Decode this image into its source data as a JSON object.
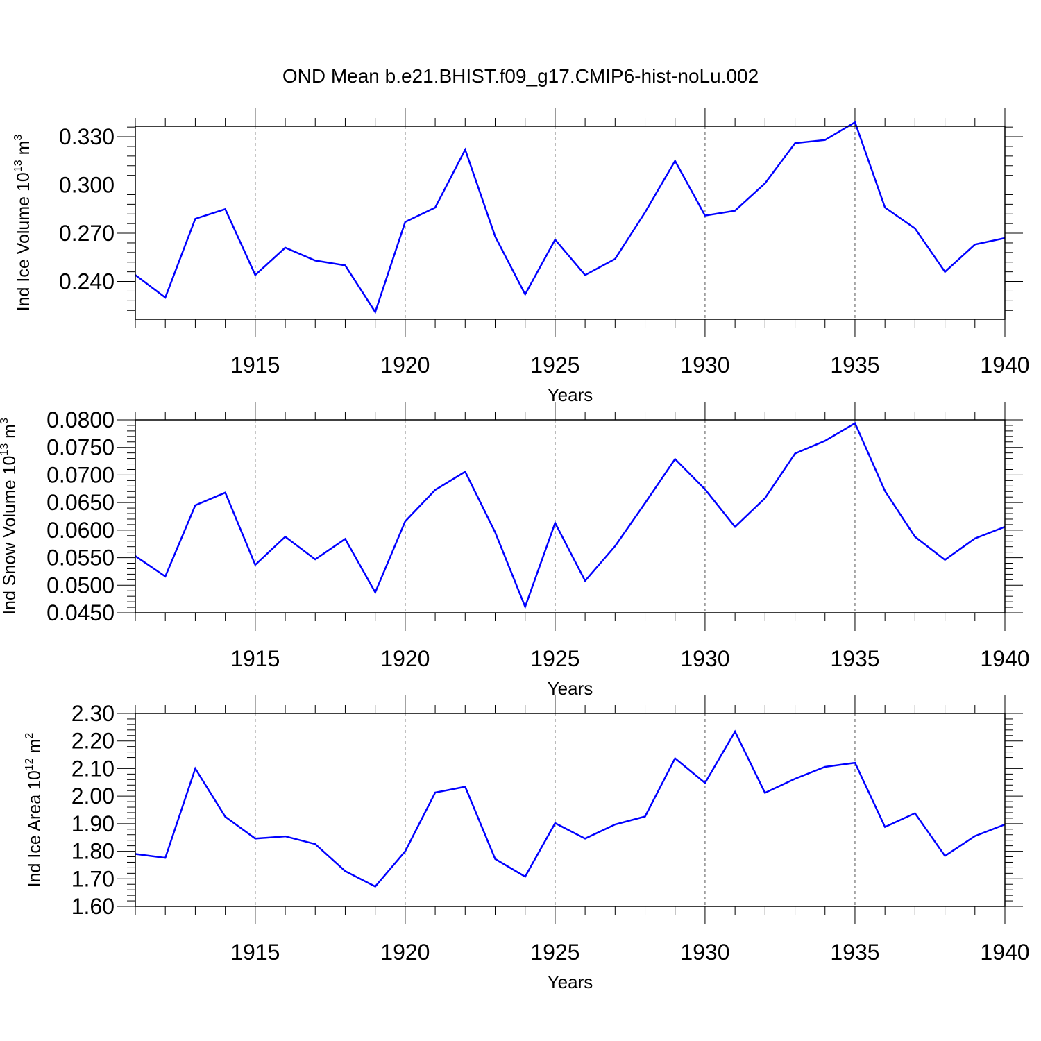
{
  "title": "OND Mean b.e21.BHIST.f09_g17.CMIP6-hist-noLu.002",
  "chart_data": [
    {
      "type": "line",
      "xlabel": "Years",
      "ylabel": {
        "text": "Ind Ice Volume 10",
        "exponent": "13",
        "unit": " m",
        "unit_exponent": "3"
      },
      "xlim": [
        1911,
        1940
      ],
      "ylim": [
        0.2165,
        0.3365
      ],
      "x_ticks": [
        1915,
        1920,
        1925,
        1930,
        1935,
        1940
      ],
      "x_tick_labels": [
        "1915",
        "1920",
        "1925",
        "1930",
        "1935",
        "1940"
      ],
      "y_ticks": [
        0.24,
        0.27,
        0.3,
        0.33
      ],
      "y_tick_labels": [
        "0.240",
        "0.270",
        "0.300",
        "0.330"
      ],
      "y_minor_step": 0.006,
      "gridlines": "vertical dashed at major x ticks",
      "series": [
        {
          "name": "Ind Ice Volume",
          "color": "#0000ff",
          "x": [
            1911,
            1912,
            1913,
            1914,
            1915,
            1916,
            1917,
            1918,
            1919,
            1920,
            1921,
            1922,
            1923,
            1924,
            1925,
            1926,
            1927,
            1928,
            1929,
            1930,
            1931,
            1932,
            1933,
            1934,
            1935,
            1936,
            1937,
            1938,
            1939,
            1940
          ],
          "values": [
            0.244,
            0.23,
            0.279,
            0.285,
            0.244,
            0.261,
            0.253,
            0.25,
            0.221,
            0.277,
            0.286,
            0.322,
            0.268,
            0.232,
            0.266,
            0.244,
            0.254,
            0.283,
            0.315,
            0.281,
            0.284,
            0.301,
            0.326,
            0.328,
            0.339,
            0.286,
            0.273,
            0.246,
            0.263,
            0.267
          ]
        }
      ]
    },
    {
      "type": "line",
      "xlabel": "Years",
      "ylabel": {
        "text": "Ind Snow Volume 10",
        "exponent": "13",
        "unit": " m",
        "unit_exponent": "3"
      },
      "xlim": [
        1911,
        1940
      ],
      "ylim": [
        0.045,
        0.08
      ],
      "x_ticks": [
        1915,
        1920,
        1925,
        1930,
        1935,
        1940
      ],
      "x_tick_labels": [
        "1915",
        "1920",
        "1925",
        "1930",
        "1935",
        "1940"
      ],
      "y_ticks": [
        0.045,
        0.05,
        0.055,
        0.06,
        0.065,
        0.07,
        0.075,
        0.08
      ],
      "y_tick_labels": [
        "0.0450",
        "0.0500",
        "0.0550",
        "0.0600",
        "0.0650",
        "0.0700",
        "0.0750",
        "0.0800"
      ],
      "y_minor_step": 0.001,
      "gridlines": "vertical dashed at major x ticks",
      "series": [
        {
          "name": "Ind Snow Volume",
          "color": "#0000ff",
          "x": [
            1911,
            1912,
            1913,
            1914,
            1915,
            1916,
            1917,
            1918,
            1919,
            1920,
            1921,
            1922,
            1923,
            1924,
            1925,
            1926,
            1927,
            1928,
            1929,
            1930,
            1931,
            1932,
            1933,
            1934,
            1935,
            1936,
            1937,
            1938,
            1939,
            1940
          ],
          "values": [
            0.0553,
            0.0516,
            0.0645,
            0.0668,
            0.0537,
            0.0588,
            0.0547,
            0.0584,
            0.0487,
            0.0616,
            0.0673,
            0.0706,
            0.0596,
            0.0461,
            0.0613,
            0.0508,
            0.0571,
            0.0649,
            0.0729,
            0.0674,
            0.0606,
            0.0658,
            0.0739,
            0.0762,
            0.0794,
            0.0671,
            0.0588,
            0.0546,
            0.0585,
            0.0606
          ]
        }
      ]
    },
    {
      "type": "line",
      "xlabel": "Years",
      "ylabel": {
        "text": "Ind Ice Area 10",
        "exponent": "12",
        "unit": " m",
        "unit_exponent": "2"
      },
      "xlim": [
        1911,
        1940
      ],
      "ylim": [
        1.6,
        2.3
      ],
      "x_ticks": [
        1915,
        1920,
        1925,
        1930,
        1935,
        1940
      ],
      "x_tick_labels": [
        "1915",
        "1920",
        "1925",
        "1930",
        "1935",
        "1940"
      ],
      "y_ticks": [
        1.6,
        1.7,
        1.8,
        1.9,
        2.0,
        2.1,
        2.2,
        2.3
      ],
      "y_tick_labels": [
        "1.60",
        "1.70",
        "1.80",
        "1.90",
        "2.00",
        "2.10",
        "2.20",
        "2.30"
      ],
      "y_minor_step": 0.02,
      "gridlines": "vertical dashed at major x ticks",
      "series": [
        {
          "name": "Ind Ice Area",
          "color": "#0000ff",
          "x": [
            1911,
            1912,
            1913,
            1914,
            1915,
            1916,
            1917,
            1918,
            1919,
            1920,
            1921,
            1922,
            1923,
            1924,
            1925,
            1926,
            1927,
            1928,
            1929,
            1930,
            1931,
            1932,
            1933,
            1934,
            1935,
            1936,
            1937,
            1938,
            1939,
            1940
          ],
          "values": [
            1.79,
            1.776,
            2.1,
            1.925,
            1.846,
            1.854,
            1.826,
            1.728,
            1.672,
            1.8,
            2.013,
            2.034,
            1.772,
            1.708,
            1.902,
            1.846,
            1.897,
            1.926,
            2.137,
            2.048,
            2.234,
            2.012,
            2.063,
            2.106,
            2.121,
            1.888,
            1.938,
            1.783,
            1.855,
            1.897
          ]
        }
      ]
    }
  ]
}
